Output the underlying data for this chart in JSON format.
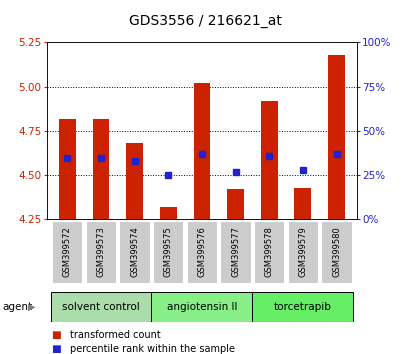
{
  "title": "GDS3556 / 216621_at",
  "samples": [
    "GSM399572",
    "GSM399573",
    "GSM399574",
    "GSM399575",
    "GSM399576",
    "GSM399577",
    "GSM399578",
    "GSM399579",
    "GSM399580"
  ],
  "transformed_counts": [
    4.82,
    4.82,
    4.68,
    4.32,
    5.02,
    4.42,
    4.92,
    4.43,
    5.18
  ],
  "percentile_ranks": [
    35,
    35,
    33,
    25,
    37,
    27,
    36,
    28,
    37
  ],
  "y_min": 4.25,
  "y_max": 5.25,
  "y_ticks": [
    4.25,
    4.5,
    4.75,
    5.0,
    5.25
  ],
  "right_y_ticks": [
    0,
    25,
    50,
    75,
    100
  ],
  "right_y_labels": [
    "0%",
    "25%",
    "50%",
    "75%",
    "100%"
  ],
  "agent_groups": [
    {
      "label": "solvent control",
      "indices": [
        0,
        1,
        2
      ],
      "color": "#aaddaa"
    },
    {
      "label": "angiotensin II",
      "indices": [
        3,
        4,
        5
      ],
      "color": "#88ee88"
    },
    {
      "label": "torcetrapib",
      "indices": [
        6,
        7,
        8
      ],
      "color": "#66ee66"
    }
  ],
  "bar_color": "#cc2200",
  "blue_color": "#2222cc",
  "background_color": "#ffffff",
  "bar_width": 0.5,
  "base_value": 4.25,
  "fig_width": 4.1,
  "fig_height": 3.54,
  "dpi": 100
}
